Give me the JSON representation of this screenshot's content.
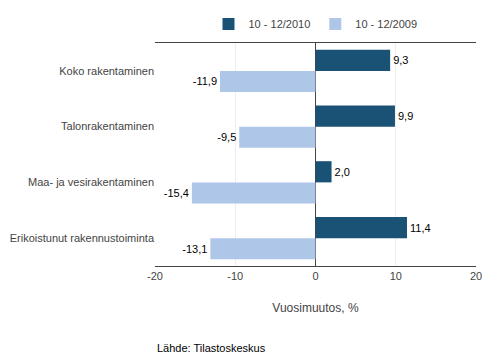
{
  "chart_data": {
    "type": "bar",
    "orientation": "horizontal",
    "categories": [
      "Koko rakentaminen",
      "Talonrakentaminen",
      "Maa- ja vesirakentaminen",
      "Erikoistunut rakennustoiminta"
    ],
    "series": [
      {
        "name": "10 - 12/2010",
        "color": "#1a5276",
        "values": [
          9.3,
          9.9,
          2.0,
          11.4
        ],
        "value_labels": [
          "9,3",
          "9,9",
          "2,0",
          "11,4"
        ]
      },
      {
        "name": "10 - 12/2009",
        "color": "#aec6e8",
        "values": [
          -11.9,
          -9.5,
          -15.4,
          -13.1
        ],
        "value_labels": [
          "-11,9",
          "-9,5",
          "-15,4",
          "-13,1"
        ]
      }
    ],
    "xlabel": "Vuosimuutos, %",
    "xlim": [
      -20,
      20
    ],
    "xticks": [
      -20,
      -10,
      0,
      10,
      20
    ],
    "data_labels": true,
    "grid": true,
    "legend": "top",
    "annotations": [
      "Lähde: Tilastoskeskus"
    ]
  }
}
